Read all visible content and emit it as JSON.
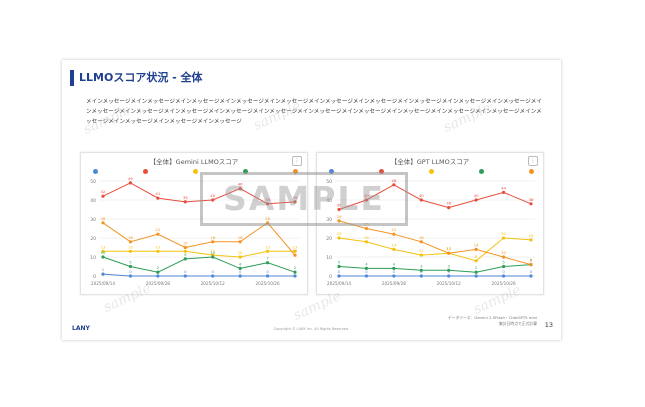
{
  "slide": {
    "title": "LLMOスコア状況 - 全体",
    "body": "メインメッセージメインメッセージメインメッセージメインメッセージメインメッセージメインメッセージメインメッセージメインメッセージメインメッセージメインメッセージメインメッセージメインメッセージメインメッセージメインメッセージメインメッセージメインメッセージメインメッセージメインメッセージメインメッセージメインメッセージメインメッセージメインメッセージメインメッセージメインメッセージ",
    "brand": "LANY",
    "copyright": "Copyright © LANY Inc. All Rights Reserved.",
    "source_line1": "データソース：Gemini 2.5Flash・ChatGPT5 mini",
    "source_line2": "集計日時点で正式計算",
    "page_number": "13",
    "stamp_text": "SAMPLE",
    "watermark_text": "sample"
  },
  "panels": [
    {
      "title": "【全体】Gemini LLMOスコア",
      "menu_icon": "more-icon"
    },
    {
      "title": "【全体】GPT LLMOスコア",
      "menu_icon": "more-icon"
    }
  ],
  "colors": {
    "accent": "#1f3f8f",
    "blue": "#4e86d9",
    "red": "#e84d3d",
    "yellow": "#f4c20d",
    "green": "#2e9e57",
    "orange": "#f39322"
  },
  "chart_data": [
    {
      "type": "line",
      "title": "【全体】Gemini LLMOスコア",
      "x": [
        "2025/09/14",
        "2025/09/21",
        "2025/09/28",
        "2025/10/05",
        "2025/10/12",
        "2025/10/19",
        "2025/10/26",
        "2025/11/02"
      ],
      "x_tick_labels": [
        "2025/09/14",
        "2025/09/28",
        "2025/10/12",
        "2025/10/26"
      ],
      "ylim": [
        0,
        50
      ],
      "y_ticks": [
        0,
        10,
        20,
        30,
        40,
        50
      ],
      "series": [
        {
          "color": "#4e86d9",
          "values": [
            1,
            0,
            0,
            0,
            0,
            0,
            0,
            0
          ]
        },
        {
          "color": "#e84d3d",
          "values": [
            42,
            49,
            41,
            39,
            40,
            46,
            38,
            39
          ]
        },
        {
          "color": "#f4c20d",
          "values": [
            13,
            13,
            13,
            13,
            11,
            10,
            13,
            13
          ]
        },
        {
          "color": "#2e9e57",
          "values": [
            10,
            5,
            2,
            9,
            10,
            4,
            7,
            2
          ]
        },
        {
          "color": "#f39322",
          "values": [
            28,
            18,
            22,
            15,
            18,
            18,
            28,
            11
          ]
        }
      ],
      "grid": true
    },
    {
      "type": "line",
      "title": "【全体】GPT LLMOスコア",
      "x": [
        "2025/09/14",
        "2025/09/21",
        "2025/09/28",
        "2025/10/05",
        "2025/10/12",
        "2025/10/19",
        "2025/10/26",
        "2025/11/02"
      ],
      "x_tick_labels": [
        "2025/09/14",
        "2025/09/28",
        "2025/10/12",
        "2025/10/26"
      ],
      "ylim": [
        0,
        50
      ],
      "y_ticks": [
        0,
        10,
        20,
        30,
        40,
        50
      ],
      "series": [
        {
          "color": "#4e86d9",
          "values": [
            0,
            0,
            0,
            0,
            0,
            0,
            0,
            0
          ]
        },
        {
          "color": "#e84d3d",
          "values": [
            35,
            40,
            48,
            40,
            36,
            40,
            44,
            38
          ]
        },
        {
          "color": "#f4c20d",
          "values": [
            20,
            18,
            14,
            11,
            12,
            8,
            20,
            19
          ]
        },
        {
          "color": "#2e9e57",
          "values": [
            5,
            4,
            4,
            3,
            3,
            2,
            5,
            6
          ]
        },
        {
          "color": "#f39322",
          "values": [
            29,
            25,
            22,
            18,
            12,
            14,
            10,
            6
          ]
        }
      ],
      "grid": true
    }
  ]
}
